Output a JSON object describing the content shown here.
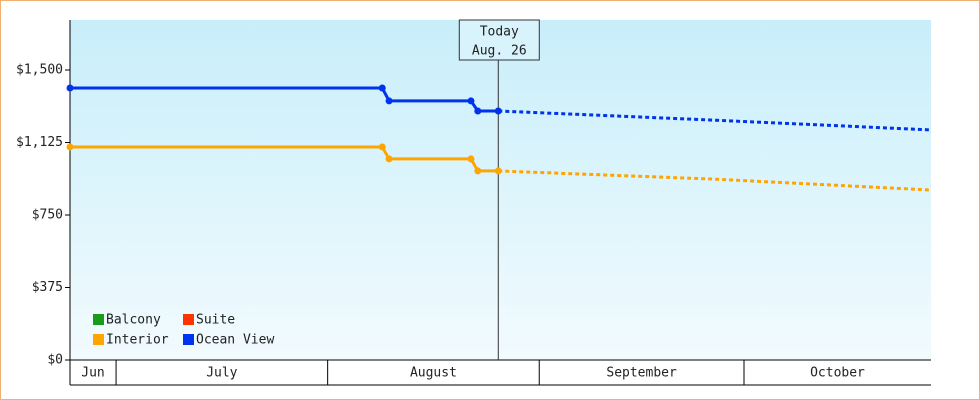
{
  "chart_data": {
    "type": "line",
    "x": [
      175.25,
      221,
      222,
      234,
      235,
      238
    ],
    "xlim": [
      175.25,
      301.4
    ],
    "xticks": [
      182,
      213,
      244,
      274
    ],
    "months": [
      "Jun",
      "July",
      "August",
      "September",
      "October"
    ],
    "ylim": [
      0,
      1758.6
    ],
    "yticks": [
      {
        "value": 0,
        "label": "$0"
      },
      {
        "value": 375,
        "label": "$375"
      },
      {
        "value": 750,
        "label": "$750"
      },
      {
        "value": 1125,
        "label": "$1,125"
      },
      {
        "value": 1500,
        "label": "$1,500"
      }
    ],
    "forecast_x": [
      238,
      270,
      301.4
    ],
    "series": [
      {
        "name": "Balcony",
        "color": "#1a9c1a",
        "values": [
          null,
          null,
          null,
          null,
          null,
          null
        ],
        "forecast_values": [
          null,
          null,
          null
        ]
      },
      {
        "name": "Suite",
        "color": "#ff3300",
        "values": [
          null,
          null,
          null,
          null,
          null,
          null
        ],
        "forecast_values": [
          null,
          null,
          null
        ]
      },
      {
        "name": "Interior",
        "color": "#ffa500",
        "values": [
          1102,
          1102,
          1040,
          1040,
          978,
          978
        ],
        "forecast_values": [
          978,
          935,
          879
        ]
      },
      {
        "name": "Ocean View",
        "color": "#0033ee",
        "values": [
          1407,
          1407,
          1340,
          1340,
          1288,
          1288
        ],
        "forecast_values": [
          1288,
          1240,
          1190
        ]
      }
    ],
    "annotation": {
      "x": 238,
      "lines": [
        "Today",
        "Aug. 26"
      ]
    }
  }
}
